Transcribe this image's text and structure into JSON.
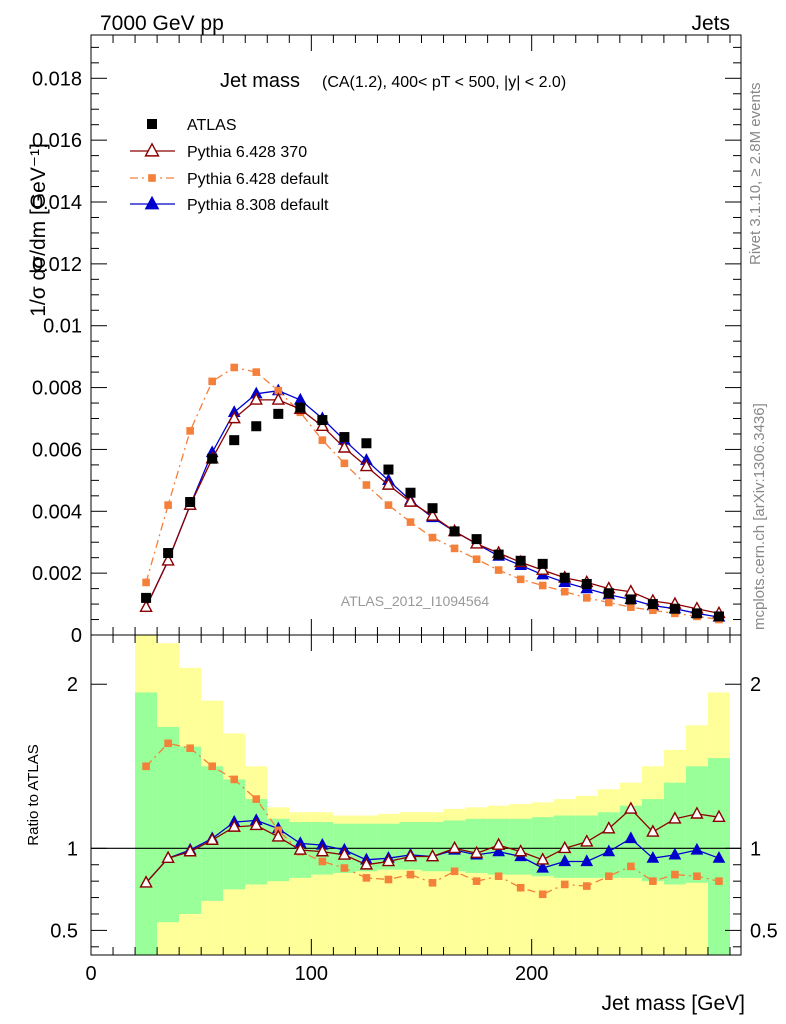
{
  "header": {
    "left": "7000 GeV pp",
    "right": "Jets"
  },
  "side_labels": {
    "rivet": "Rivet 3.1.10, ≥ 2.8M events",
    "mcplots": "mcplots.cern.ch [arXiv:1306.3436]"
  },
  "watermark": "ATLAS_2012_I1094564",
  "chart_data": {
    "type": "line",
    "title": "Jet mass",
    "subtitle": "(CA(1.2), 400< pT < 500, |y| < 2.0)",
    "xlabel": "Jet mass [GeV]",
    "ylabel": "1/σ dσ/dm [GeV⁻¹]",
    "ratio_ylabel": "Ratio to ATLAS",
    "xlim": [
      0,
      295
    ],
    "ylim": [
      0,
      0.0194
    ],
    "ratio_ylim": [
      0.35,
      2.3
    ],
    "x_ticks": [
      0,
      100,
      200
    ],
    "x_tick_labels": [
      "0",
      "100",
      "200"
    ],
    "y_ticks": [
      0,
      0.002,
      0.004,
      0.006,
      0.008,
      0.01,
      0.012,
      0.014,
      0.016,
      0.018
    ],
    "y_tick_labels": [
      "0",
      "0.002",
      "0.004",
      "0.006",
      "0.008",
      "0.01",
      "0.012",
      "0.014",
      "0.016",
      "0.018"
    ],
    "ratio_ticks": [
      0.5,
      1,
      2
    ],
    "ratio_tick_labels": [
      "0.5",
      "1",
      "2"
    ],
    "legend_position": "top-left",
    "x": [
      25,
      35,
      45,
      55,
      65,
      75,
      85,
      95,
      105,
      115,
      125,
      135,
      145,
      155,
      165,
      175,
      185,
      195,
      205,
      215,
      225,
      235,
      245,
      255,
      265,
      275,
      285
    ],
    "bin_edges": [
      20,
      30,
      40,
      50,
      60,
      70,
      80,
      90,
      100,
      110,
      120,
      130,
      140,
      150,
      160,
      170,
      180,
      190,
      200,
      210,
      220,
      230,
      240,
      250,
      260,
      270,
      280,
      290
    ],
    "series": [
      {
        "name": "ATLAS",
        "color": "#000000",
        "style": "data",
        "values": [
          0.0012,
          0.00265,
          0.0043,
          0.0057,
          0.0063,
          0.00675,
          0.00715,
          0.00735,
          0.00695,
          0.0064,
          0.0062,
          0.00535,
          0.0046,
          0.0041,
          0.00335,
          0.0031,
          0.0026,
          0.0024,
          0.0023,
          0.00185,
          0.00165,
          0.00135,
          0.00115,
          0.001,
          0.00085,
          0.0007,
          0.0006
        ]
      },
      {
        "name": "Pythia 6.428 370",
        "color": "#8b0000",
        "style": "open-triangle",
        "values": [
          0.0009,
          0.0024,
          0.0042,
          0.0057,
          0.007,
          0.0076,
          0.0076,
          0.0073,
          0.00675,
          0.00605,
          0.00545,
          0.00485,
          0.0043,
          0.00385,
          0.00335,
          0.00295,
          0.00265,
          0.00235,
          0.0021,
          0.00185,
          0.0017,
          0.0015,
          0.0014,
          0.0011,
          0.001,
          0.00085,
          0.0007
        ]
      },
      {
        "name": "Pythia 6.428 default",
        "color": "#f4803a",
        "style": "dashdot-square",
        "values": [
          0.0017,
          0.0042,
          0.0066,
          0.0082,
          0.00865,
          0.0085,
          0.0079,
          0.0072,
          0.0063,
          0.00555,
          0.00485,
          0.0042,
          0.00365,
          0.00315,
          0.0028,
          0.00245,
          0.0021,
          0.0018,
          0.0016,
          0.0014,
          0.0012,
          0.00105,
          0.0009,
          0.0008,
          0.0007,
          0.0006,
          0.0005
        ]
      },
      {
        "name": "Pythia 8.308 default",
        "color": "#0000cc",
        "style": "filled-triangle",
        "values": [
          0.0009,
          0.0024,
          0.0042,
          0.0059,
          0.0072,
          0.0078,
          0.0079,
          0.0076,
          0.007,
          0.0063,
          0.00565,
          0.005,
          0.00435,
          0.0038,
          0.00335,
          0.00295,
          0.00255,
          0.00225,
          0.00195,
          0.0017,
          0.0015,
          0.0013,
          0.00115,
          0.00095,
          0.00085,
          0.0007,
          0.00058
        ]
      }
    ],
    "ratio_series": [
      {
        "name": "Pythia 6.428 370",
        "color": "#8b0000",
        "style": "open-triangle",
        "values": [
          0.79,
          0.94,
          0.98,
          1.05,
          1.13,
          1.14,
          1.07,
          0.99,
          0.98,
          0.96,
          0.9,
          0.92,
          0.95,
          0.95,
          1.0,
          0.97,
          1.02,
          0.98,
          0.93,
          1.0,
          1.04,
          1.12,
          1.24,
          1.1,
          1.18,
          1.21,
          1.19
        ]
      },
      {
        "name": "Pythia 6.428 default",
        "color": "#f4803a",
        "style": "dashdot-square",
        "values": [
          1.5,
          1.64,
          1.61,
          1.5,
          1.42,
          1.3,
          1.11,
          0.98,
          0.92,
          0.88,
          0.82,
          0.81,
          0.84,
          0.79,
          0.86,
          0.8,
          0.83,
          0.76,
          0.72,
          0.78,
          0.77,
          0.83,
          0.89,
          0.8,
          0.84,
          0.83,
          0.8
        ]
      },
      {
        "name": "Pythia 8.308 default",
        "color": "#0000cc",
        "style": "filled-triangle",
        "values": [
          0.79,
          0.94,
          0.99,
          1.06,
          1.16,
          1.17,
          1.12,
          1.03,
          1.02,
          0.99,
          0.93,
          0.94,
          0.96,
          0.95,
          0.99,
          0.96,
          0.98,
          0.95,
          0.88,
          0.92,
          0.92,
          0.98,
          1.06,
          0.94,
          0.96,
          0.99,
          0.94
        ]
      }
    ],
    "uncertainty_bands": {
      "inner_color": "#99ff99",
      "outer_color": "#ffff99",
      "inner_low": [
        0.35,
        0.55,
        0.6,
        0.68,
        0.75,
        0.78,
        0.8,
        0.82,
        0.84,
        0.85,
        0.86,
        0.87,
        0.87,
        0.86,
        0.86,
        0.85,
        0.84,
        0.84,
        0.83,
        0.82,
        0.82,
        0.82,
        0.82,
        0.8,
        0.78,
        0.79,
        0.35
      ],
      "inner_high": [
        1.95,
        1.74,
        1.62,
        1.5,
        1.42,
        1.3,
        1.18,
        1.16,
        1.16,
        1.15,
        1.15,
        1.15,
        1.16,
        1.16,
        1.17,
        1.18,
        1.18,
        1.18,
        1.19,
        1.2,
        1.2,
        1.22,
        1.26,
        1.3,
        1.4,
        1.5,
        1.55
      ],
      "outer_low": [
        0.35,
        0.35,
        0.35,
        0.35,
        0.35,
        0.35,
        0.35,
        0.35,
        0.35,
        0.35,
        0.35,
        0.35,
        0.35,
        0.35,
        0.35,
        0.35,
        0.35,
        0.35,
        0.35,
        0.35,
        0.35,
        0.35,
        0.35,
        0.35,
        0.35,
        0.35,
        0.35
      ],
      "outer_high": [
        2.35,
        2.25,
        2.1,
        1.9,
        1.7,
        1.5,
        1.25,
        1.22,
        1.22,
        1.2,
        1.2,
        1.21,
        1.22,
        1.22,
        1.24,
        1.25,
        1.26,
        1.27,
        1.28,
        1.3,
        1.32,
        1.36,
        1.4,
        1.5,
        1.6,
        1.75,
        1.95
      ]
    }
  }
}
